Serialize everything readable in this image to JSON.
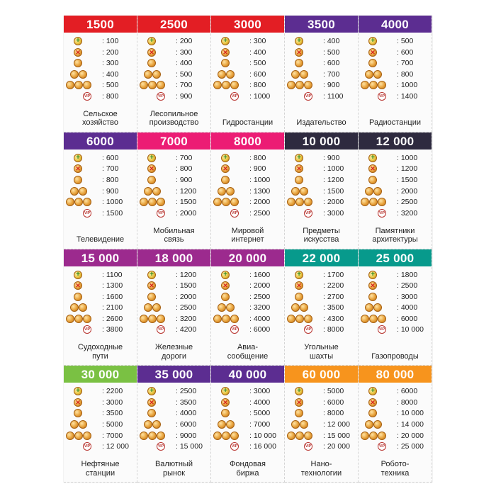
{
  "cards": [
    {
      "price": "1500",
      "color": "#e31e24",
      "vals": [
        ": 100",
        ": 200",
        ": 300",
        ": 400",
        ": 500",
        ": 800"
      ],
      "name": "Сельское\nхозяйство"
    },
    {
      "price": "2500",
      "color": "#e31e24",
      "vals": [
        ": 200",
        ": 300",
        ": 400",
        ": 500",
        ": 700",
        ": 900"
      ],
      "name": "Лесопильное\nпроизводство"
    },
    {
      "price": "3000",
      "color": "#e31e24",
      "vals": [
        ": 300",
        ": 400",
        ": 500",
        ": 600",
        ": 800",
        ": 1000"
      ],
      "name": "Гидростанции"
    },
    {
      "price": "3500",
      "color": "#5c2d91",
      "vals": [
        ": 400",
        ": 500",
        ": 600",
        ": 700",
        ": 900",
        ": 1100"
      ],
      "name": "Издательство"
    },
    {
      "price": "4000",
      "color": "#5c2d91",
      "vals": [
        ": 500",
        ": 600",
        ": 700",
        ": 800",
        ": 1000",
        ": 1400"
      ],
      "name": "Радиостанции"
    },
    {
      "price": "6000",
      "color": "#5c2d91",
      "vals": [
        ": 600",
        ": 700",
        ": 800",
        ": 900",
        ": 1000",
        ": 1500"
      ],
      "name": "Телевидение"
    },
    {
      "price": "7000",
      "color": "#ec1c74",
      "vals": [
        ": 700",
        ": 800",
        ": 900",
        ": 1200",
        ": 1500",
        ": 2000"
      ],
      "name": "Мобильная\nсвязь"
    },
    {
      "price": "8000",
      "color": "#ec1c74",
      "vals": [
        ": 800",
        ": 900",
        ": 1000",
        ": 1300",
        ": 2000",
        ": 2500"
      ],
      "name": "Мировой\nинтернет"
    },
    {
      "price": "10 000",
      "color": "#2e2a3f",
      "vals": [
        ": 900",
        ": 1000",
        ": 1200",
        ": 1500",
        ": 2000",
        ": 3000"
      ],
      "name": "Предметы\nискусства"
    },
    {
      "price": "12 000",
      "color": "#2e2a3f",
      "vals": [
        ": 1000",
        ": 1200",
        ": 1500",
        ": 2000",
        ": 2500",
        ": 3200"
      ],
      "name": "Памятники\nархитектуры"
    },
    {
      "price": "15 000",
      "color": "#9c2a8e",
      "vals": [
        ": 1100",
        ": 1300",
        ": 1600",
        ": 2100",
        ": 2600",
        ": 3800"
      ],
      "name": "Судоходные\nпути"
    },
    {
      "price": "18 000",
      "color": "#9c2a8e",
      "vals": [
        ": 1200",
        ": 1500",
        ": 2000",
        ": 2500",
        ": 3200",
        ": 4200"
      ],
      "name": "Железные\nдороги"
    },
    {
      "price": "20 000",
      "color": "#9c2a8e",
      "vals": [
        ": 1600",
        ": 2000",
        ": 2500",
        ": 3200",
        ": 4000",
        ": 6000"
      ],
      "name": "Авиа-\nсообщение"
    },
    {
      "price": "22 000",
      "color": "#079a8c",
      "vals": [
        ": 1700",
        ": 2200",
        ": 2700",
        ": 3500",
        ": 4300",
        ": 8000"
      ],
      "name": "Угольные\nшахты"
    },
    {
      "price": "25 000",
      "color": "#079a8c",
      "vals": [
        ": 1800",
        ": 2500",
        ": 3000",
        ": 4000",
        ": 6000",
        ": 10 000"
      ],
      "name": "Газопроводы"
    },
    {
      "price": "30 000",
      "color": "#7ac143",
      "vals": [
        ": 2200",
        ": 3000",
        ": 3500",
        ": 5000",
        ": 7000",
        ": 12 000"
      ],
      "name": "Нефтяные\nстанции"
    },
    {
      "price": "35 000",
      "color": "#5c2d91",
      "vals": [
        ": 2500",
        ": 3500",
        ": 4000",
        ": 6000",
        ": 9000",
        ": 15 000"
      ],
      "name": "Валютный\nрынок"
    },
    {
      "price": "40 000",
      "color": "#5c2d91",
      "vals": [
        ": 3000",
        ": 4000",
        ": 5000",
        ": 7000",
        ": 10 000",
        ": 16 000"
      ],
      "name": "Фондовая\nбиржа"
    },
    {
      "price": "60 000",
      "color": "#f7941d",
      "vals": [
        ": 5000",
        ": 6000",
        ": 8000",
        ": 12 000",
        ": 15 000",
        ": 20 000"
      ],
      "name": "Нано-\nтехнологии"
    },
    {
      "price": "80 000",
      "color": "#f7941d",
      "vals": [
        ": 6000",
        ": 8000",
        ": 10 000",
        ": 14 000",
        ": 20 000",
        ": 25 000"
      ],
      "name": "Робото-\nтехника"
    }
  ],
  "icons": [
    "plus-coin-icon",
    "cross-coin-icon",
    "coin-icon",
    "coin-stack-icon",
    "coin-row-icon",
    "vip-coin-icon"
  ]
}
